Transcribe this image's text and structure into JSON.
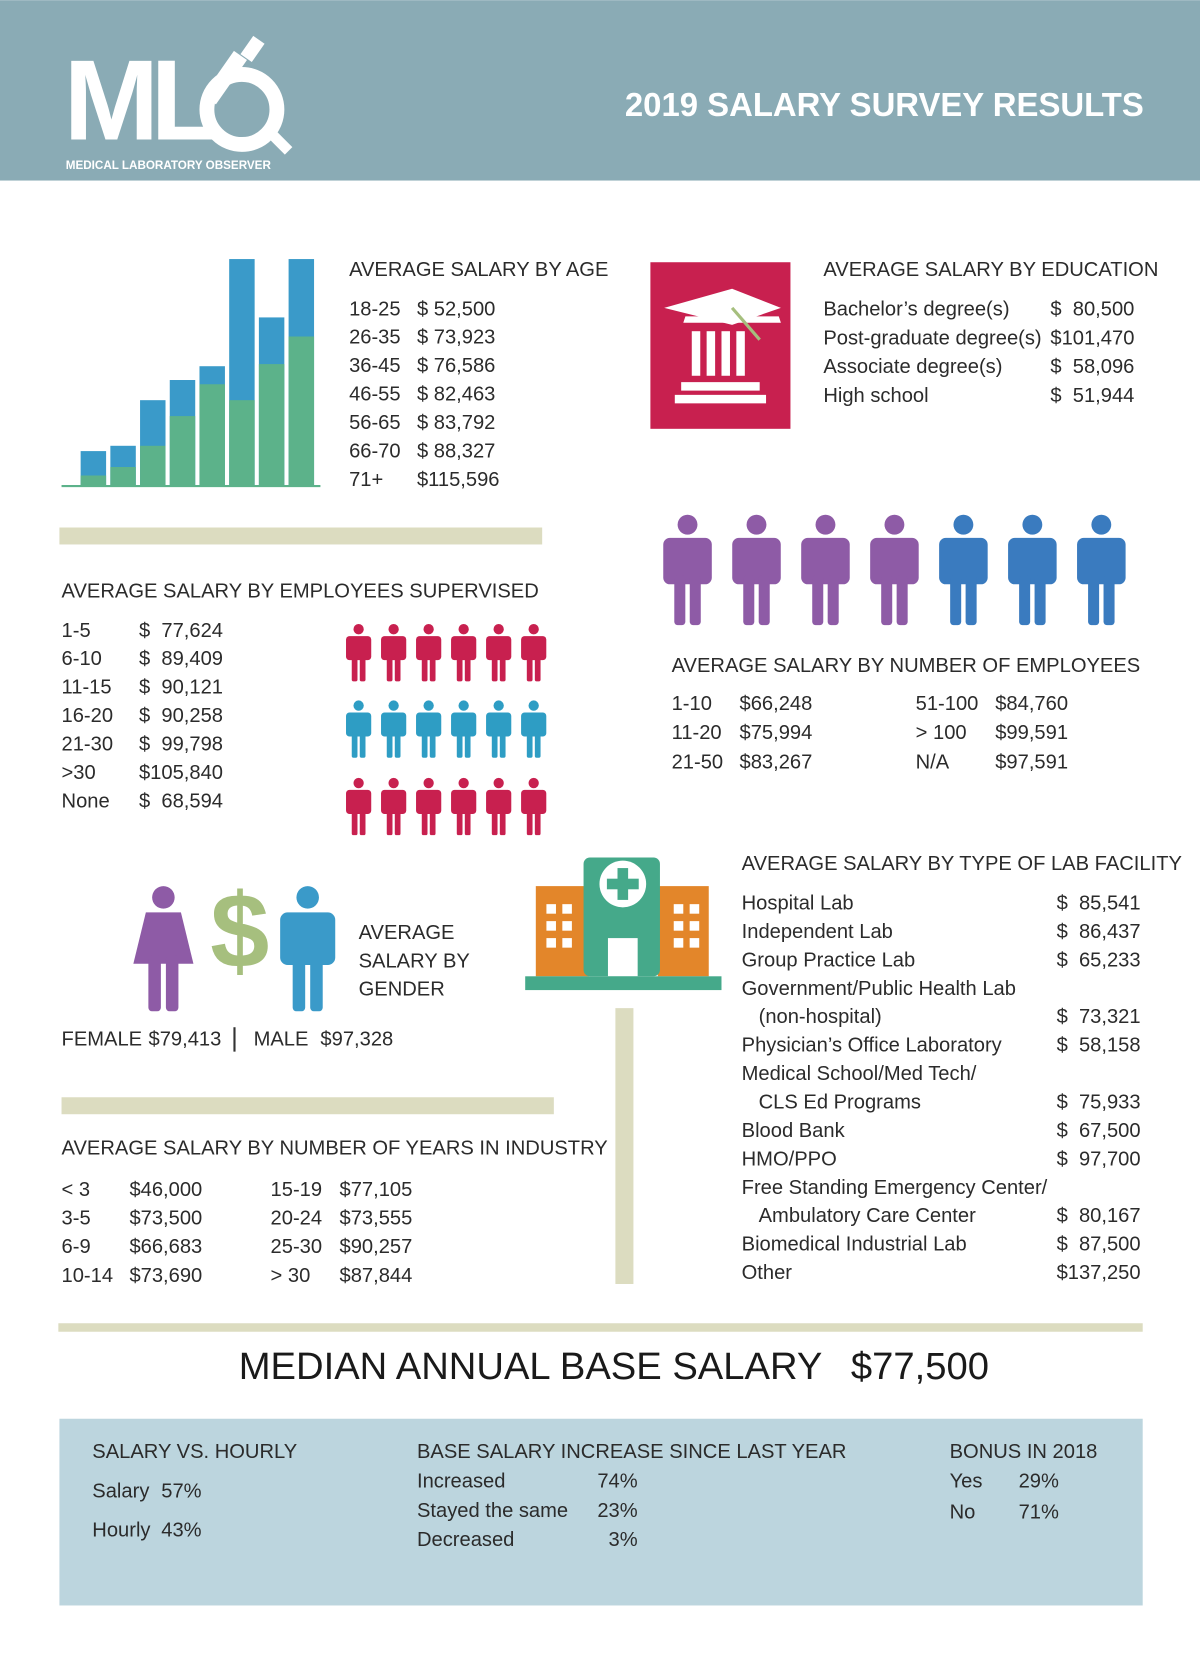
{
  "header": {
    "logo": "ML",
    "tagline": "MEDICAL LABORATORY OBSERVER",
    "title": "2019 SALARY SURVEY RESULTS"
  },
  "age": {
    "title": "AVERAGE SALARY BY AGE",
    "rows": [
      [
        "18-25",
        "$ 52,500"
      ],
      [
        "26-35",
        "$ 73,923"
      ],
      [
        "36-45",
        "$ 76,586"
      ],
      [
        "46-55",
        "$ 82,463"
      ],
      [
        "56-65",
        "$ 83,792"
      ],
      [
        "66-70",
        "$ 88,327"
      ],
      [
        "71+",
        "$115,596"
      ]
    ]
  },
  "education": {
    "title": "AVERAGE SALARY BY EDUCATION",
    "rows": [
      [
        "Bachelor’s degree(s)",
        "$  80,500"
      ],
      [
        "Post-graduate degree(s)",
        "$101,470"
      ],
      [
        "Associate degree(s)",
        "$  58,096"
      ],
      [
        "High school",
        "$  51,944"
      ]
    ]
  },
  "supervised": {
    "title": "AVERAGE SALARY BY EMPLOYEES SUPERVISED",
    "rows": [
      [
        "1-5",
        "$  77,624"
      ],
      [
        "6-10",
        "$  89,409"
      ],
      [
        "11-15",
        "$  90,121"
      ],
      [
        "16-20",
        "$  90,258"
      ],
      [
        "21-30",
        "$  99,798"
      ],
      [
        ">30",
        "$105,840"
      ],
      [
        "None",
        "$  68,594"
      ]
    ]
  },
  "employees": {
    "title": "AVERAGE SALARY BY NUMBER OF EMPLOYEES",
    "columns": [
      [
        [
          "1-10",
          "$66,248"
        ],
        [
          "11-20",
          "$75,994"
        ],
        [
          "21-50",
          "$83,267"
        ]
      ],
      [
        [
          "51-100",
          "$84,760"
        ],
        [
          "> 100",
          "$99,591"
        ],
        [
          "N/A",
          "$97,591"
        ]
      ]
    ]
  },
  "gender": {
    "title": [
      "AVERAGE",
      "SALARY BY",
      "GENDER"
    ],
    "symbol": "$",
    "female": [
      "FEMALE",
      "$79,413"
    ],
    "male": [
      "MALE",
      "$97,328"
    ]
  },
  "years": {
    "title": "AVERAGE SALARY BY NUMBER OF YEARS IN INDUSTRY",
    "columns": [
      [
        [
          "< 3",
          "$46,000"
        ],
        [
          "3-5",
          "$73,500"
        ],
        [
          "6-9",
          "$66,683"
        ],
        [
          "10-14",
          "$73,690"
        ]
      ],
      [
        [
          "15-19",
          "$77,105"
        ],
        [
          "20-24",
          "$73,555"
        ],
        [
          "25-30",
          "$90,257"
        ],
        [
          "> 30",
          "$87,844"
        ]
      ]
    ]
  },
  "facility": {
    "title": "AVERAGE SALARY BY TYPE OF LAB FACILITY",
    "rows": [
      {
        "name": [
          "Hospital Lab"
        ],
        "value": "$  85,541"
      },
      {
        "name": [
          "Independent Lab"
        ],
        "value": "$  86,437"
      },
      {
        "name": [
          "Group Practice Lab"
        ],
        "value": "$  65,233"
      },
      {
        "name": [
          "Government/Public Health Lab",
          "(non-hospital)"
        ],
        "value": "$  73,321"
      },
      {
        "name": [
          "Physician’s Office Laboratory"
        ],
        "value": "$  58,158"
      },
      {
        "name": [
          "Medical School/Med Tech/",
          "CLS Ed Programs"
        ],
        "value": "$  75,933"
      },
      {
        "name": [
          "Blood Bank"
        ],
        "value": "$  67,500"
      },
      {
        "name": [
          "HMO/PPO"
        ],
        "value": "$  97,700"
      },
      {
        "name": [
          "Free Standing Emergency Center/",
          "Ambulatory Care Center"
        ],
        "value": "$  80,167"
      },
      {
        "name": [
          "Biomedical Industrial Lab"
        ],
        "value": "$  87,500"
      },
      {
        "name": [
          "Other"
        ],
        "value": "$137,250"
      }
    ]
  },
  "median": {
    "label": "MEDIAN ANNUAL BASE SALARY",
    "value": "$77,500"
  },
  "footer": {
    "salary_hourly": {
      "title": "SALARY VS. HOURLY",
      "rows": [
        [
          "Salary",
          "57%"
        ],
        [
          "Hourly",
          "43%"
        ]
      ]
    },
    "increase": {
      "title": "BASE SALARY INCREASE SINCE LAST YEAR",
      "rows": [
        [
          "Increased",
          "74%"
        ],
        [
          "Stayed the same",
          "23%"
        ],
        [
          "Decreased",
          "3%"
        ]
      ]
    },
    "bonus": {
      "title": "BONUS IN 2018",
      "rows": [
        [
          "Yes",
          "29%"
        ],
        [
          "No",
          "71%"
        ]
      ]
    }
  }
}
